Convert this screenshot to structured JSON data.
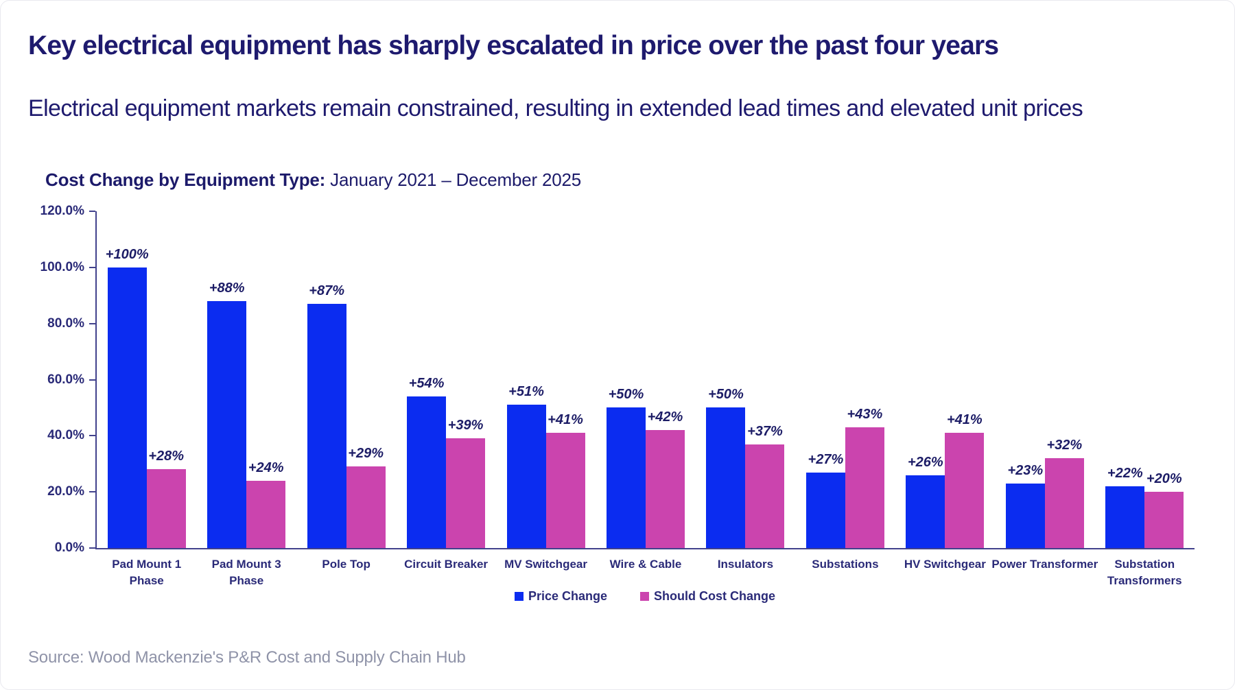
{
  "header": {
    "title": "Key electrical equipment has sharply escalated in price over the past four years",
    "subtitle": "Electrical equipment markets remain constrained, resulting in extended lead times and elevated unit prices"
  },
  "chart_data": {
    "type": "bar",
    "title_bold": "Cost Change by Equipment Type:",
    "title_rest": "January 2021 – December 2025",
    "ylabel": "",
    "xlabel": "",
    "ylim": [
      0,
      120
    ],
    "yticks": [
      0,
      20,
      40,
      60,
      80,
      100,
      120
    ],
    "ytick_labels": [
      "0.0%",
      "20.0%",
      "40.0%",
      "60.0%",
      "80.0%",
      "100.0%",
      "120.0%"
    ],
    "grid": false,
    "legend_position": "bottom",
    "categories": [
      "Pad Mount 1 Phase",
      "Pad Mount 3 Phase",
      "Pole Top",
      "Circuit Breaker",
      "MV Switchgear",
      "Wire & Cable",
      "Insulators",
      "Substations",
      "HV Switchgear",
      "Power Transformer",
      "Substation Transformers"
    ],
    "category_lines": [
      [
        "Pad Mount 1",
        "Phase"
      ],
      [
        "Pad Mount 3",
        "Phase"
      ],
      [
        "Pole Top"
      ],
      [
        "Circuit Breaker"
      ],
      [
        "MV Switchgear"
      ],
      [
        "Wire & Cable"
      ],
      [
        "Insulators"
      ],
      [
        "Substations"
      ],
      [
        "HV Switchgear"
      ],
      [
        "Power Transformer"
      ],
      [
        "Substation",
        "Transformers"
      ]
    ],
    "series": [
      {
        "name": "Price Change",
        "color": "#0b2cf0",
        "values": [
          100,
          88,
          87,
          54,
          51,
          50,
          50,
          27,
          26,
          23,
          22
        ],
        "labels": [
          "+100%",
          "+88%",
          "+87%",
          "+54%",
          "+51%",
          "+50%",
          "+50%",
          "+27%",
          "+26%",
          "+23%",
          "+22%"
        ]
      },
      {
        "name": "Should Cost Change",
        "color": "#cb44ae",
        "values": [
          28,
          24,
          29,
          39,
          41,
          42,
          37,
          43,
          41,
          32,
          20
        ],
        "labels": [
          "+28%",
          "+24%",
          "+29%",
          "+39%",
          "+41%",
          "+42%",
          "+37%",
          "+43%",
          "+41%",
          "+32%",
          "+20%"
        ]
      }
    ]
  },
  "source": "Source: Wood Mackenzie's P&R Cost and Supply Chain Hub",
  "colors": {
    "heading_navy": "#1e1a6e",
    "chart_navy": "#2a2a78",
    "axis": "#41418c",
    "price_change_blue": "#0b2cf0",
    "should_cost_pink": "#cb44ae",
    "source_gray": "#8f93a8"
  }
}
